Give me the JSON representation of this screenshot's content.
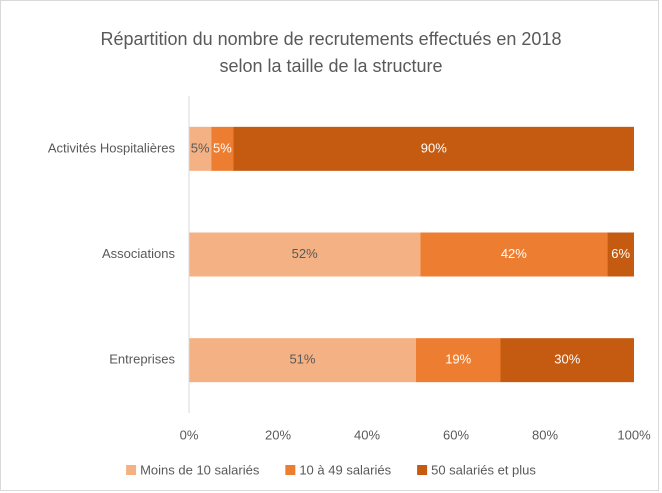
{
  "chart_data": {
    "type": "stacked-bar-horizontal",
    "title": "Répartition du nombre de recrutements effectués en 2018 selon la taille de la structure",
    "categories": [
      "Activités Hospitalières",
      "Associations",
      "Entreprises"
    ],
    "series": [
      {
        "name": "Moins de 10 salariés",
        "color": "#f4b183",
        "values": [
          5,
          52,
          51
        ],
        "value_labels": [
          "5%",
          "52%",
          "51%"
        ]
      },
      {
        "name": "10 à 49 salariés",
        "color": "#ed7d31",
        "values": [
          5,
          42,
          19
        ],
        "value_labels": [
          "5%",
          "42%",
          "19%"
        ]
      },
      {
        "name": "50 salariés et plus",
        "color": "#c55a11",
        "values": [
          90,
          6,
          30
        ],
        "value_labels": [
          "90%",
          "6%",
          "30%"
        ]
      }
    ],
    "xlim": [
      0,
      100
    ],
    "xticks": [
      {
        "value": 0,
        "label": "0%"
      },
      {
        "value": 20,
        "label": "20%"
      },
      {
        "value": 40,
        "label": "40%"
      },
      {
        "value": 60,
        "label": "60%"
      },
      {
        "value": 80,
        "label": "80%"
      },
      {
        "value": 100,
        "label": "100%"
      }
    ],
    "grid": false,
    "legend": "bottom"
  }
}
